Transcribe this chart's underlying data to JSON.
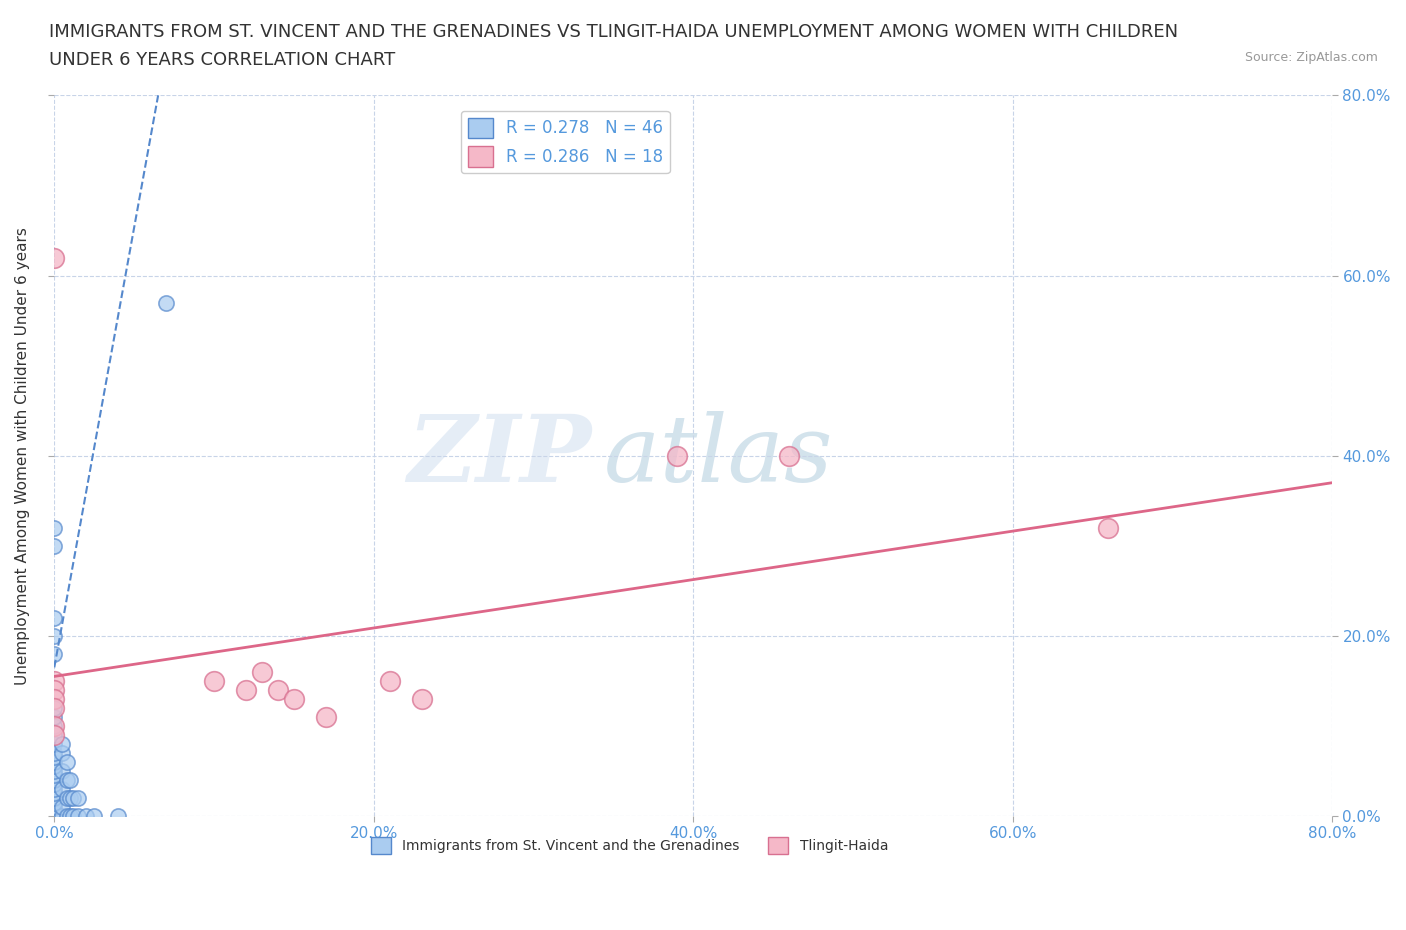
{
  "title_line1": "IMMIGRANTS FROM ST. VINCENT AND THE GRENADINES VS TLINGIT-HAIDA UNEMPLOYMENT AMONG WOMEN WITH CHILDREN",
  "title_line2": "UNDER 6 YEARS CORRELATION CHART",
  "source": "Source: ZipAtlas.com",
  "ylabel": "Unemployment Among Women with Children Under 6 years",
  "xlim": [
    0.0,
    0.8
  ],
  "ylim": [
    0.0,
    0.8
  ],
  "xticks": [
    0.0,
    0.2,
    0.4,
    0.6,
    0.8
  ],
  "yticks": [
    0.0,
    0.2,
    0.4,
    0.6,
    0.8
  ],
  "xticklabels": [
    "0.0%",
    "20.0%",
    "40.0%",
    "60.0%",
    "80.0%"
  ],
  "yticklabels": [
    "0.0%",
    "20.0%",
    "40.0%",
    "60.0%",
    "80.0%"
  ],
  "legend_entries": [
    {
      "label": "R = 0.278   N = 46"
    },
    {
      "label": "R = 0.286   N = 18"
    }
  ],
  "blue_scatter": [
    [
      0.0,
      0.0
    ],
    [
      0.0,
      0.005
    ],
    [
      0.0,
      0.01
    ],
    [
      0.0,
      0.015
    ],
    [
      0.0,
      0.02
    ],
    [
      0.0,
      0.025
    ],
    [
      0.0,
      0.03
    ],
    [
      0.0,
      0.035
    ],
    [
      0.0,
      0.04
    ],
    [
      0.0,
      0.045
    ],
    [
      0.0,
      0.05
    ],
    [
      0.0,
      0.055
    ],
    [
      0.0,
      0.06
    ],
    [
      0.0,
      0.065
    ],
    [
      0.0,
      0.07
    ],
    [
      0.0,
      0.08
    ],
    [
      0.0,
      0.09
    ],
    [
      0.0,
      0.1
    ],
    [
      0.0,
      0.11
    ],
    [
      0.0,
      0.12
    ],
    [
      0.0,
      0.18
    ],
    [
      0.0,
      0.2
    ],
    [
      0.0,
      0.22
    ],
    [
      0.0,
      0.3
    ],
    [
      0.0,
      0.32
    ],
    [
      0.005,
      0.0
    ],
    [
      0.005,
      0.01
    ],
    [
      0.005,
      0.03
    ],
    [
      0.005,
      0.05
    ],
    [
      0.005,
      0.07
    ],
    [
      0.005,
      0.08
    ],
    [
      0.008,
      0.0
    ],
    [
      0.008,
      0.02
    ],
    [
      0.008,
      0.04
    ],
    [
      0.008,
      0.06
    ],
    [
      0.01,
      0.0
    ],
    [
      0.01,
      0.02
    ],
    [
      0.01,
      0.04
    ],
    [
      0.012,
      0.0
    ],
    [
      0.012,
      0.02
    ],
    [
      0.015,
      0.0
    ],
    [
      0.015,
      0.02
    ],
    [
      0.02,
      0.0
    ],
    [
      0.025,
      0.0
    ],
    [
      0.04,
      0.0
    ],
    [
      0.07,
      0.57
    ]
  ],
  "pink_scatter": [
    [
      0.0,
      0.62
    ],
    [
      0.0,
      0.15
    ],
    [
      0.0,
      0.14
    ],
    [
      0.0,
      0.13
    ],
    [
      0.0,
      0.12
    ],
    [
      0.0,
      0.1
    ],
    [
      0.0,
      0.09
    ],
    [
      0.1,
      0.15
    ],
    [
      0.12,
      0.14
    ],
    [
      0.13,
      0.16
    ],
    [
      0.14,
      0.14
    ],
    [
      0.15,
      0.13
    ],
    [
      0.17,
      0.11
    ],
    [
      0.21,
      0.15
    ],
    [
      0.23,
      0.13
    ],
    [
      0.39,
      0.4
    ],
    [
      0.46,
      0.4
    ],
    [
      0.66,
      0.32
    ]
  ],
  "blue_line": {
    "x": [
      0.0,
      0.065
    ],
    "y": [
      0.165,
      0.8
    ]
  },
  "pink_line": {
    "x": [
      0.0,
      0.8
    ],
    "y": [
      0.155,
      0.37
    ]
  },
  "blue_scatter_color": "#aaccf0",
  "blue_scatter_edge": "#5588cc",
  "pink_scatter_color": "#f5b8c8",
  "pink_scatter_edge": "#d87090",
  "blue_line_color": "#5588cc",
  "pink_line_color": "#dd6688",
  "watermark_zip": "ZIP",
  "watermark_atlas": "atlas",
  "background_color": "#ffffff",
  "grid_color": "#c8d4e8",
  "title_fontsize": 13,
  "axis_label_fontsize": 11,
  "tick_fontsize": 11,
  "tick_color": "#5599dd",
  "legend_fontsize": 12
}
